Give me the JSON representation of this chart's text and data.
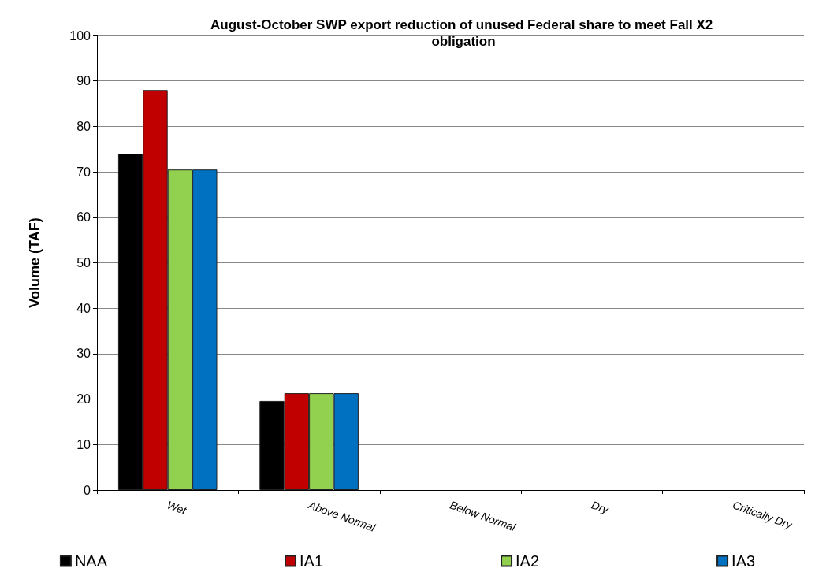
{
  "chart_data": {
    "type": "bar",
    "title": "August-October SWP export reduction of unused Federal share to meet Fall X2 obligation",
    "ylabel": "Volume (TAF)",
    "categories": [
      "Wet",
      "Above Normal",
      "Below Normal",
      "Dry",
      "Critically Dry"
    ],
    "series": [
      {
        "name": "NAA",
        "color": "#000000",
        "values": [
          74,
          19.6,
          0,
          0,
          0
        ]
      },
      {
        "name": "IA1",
        "color": "#c00000",
        "values": [
          88,
          21.3,
          0,
          0,
          0
        ]
      },
      {
        "name": "IA2",
        "color": "#92d050",
        "values": [
          70.5,
          21.3,
          0,
          0,
          0
        ]
      },
      {
        "name": "IA3",
        "color": "#0070c0",
        "values": [
          70.5,
          21.3,
          0,
          0,
          0
        ]
      }
    ],
    "ylim": [
      0,
      100
    ],
    "yticks": [
      0,
      10,
      20,
      30,
      40,
      50,
      60,
      70,
      80,
      90,
      100
    ],
    "grid": "y",
    "legend": "bottom"
  }
}
